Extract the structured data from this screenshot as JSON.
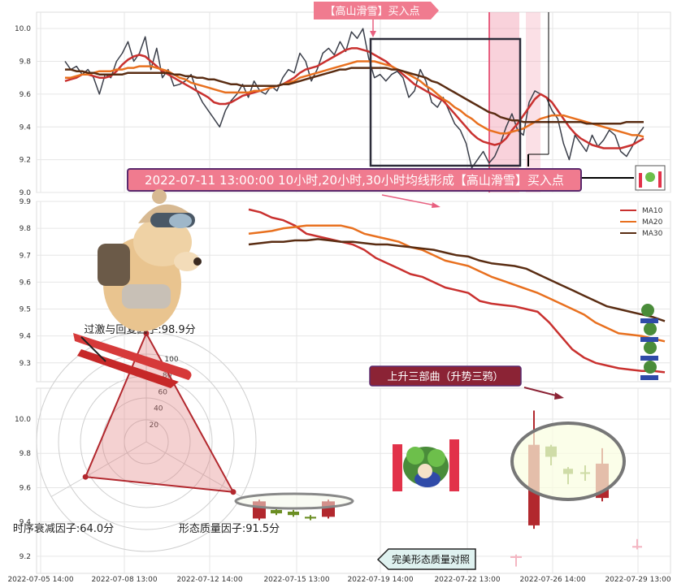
{
  "x_ticks": [
    "2022-07-05 14:00",
    "2022-07-08 13:00",
    "2022-07-12 14:00",
    "2022-07-15 13:00",
    "2022-07-19 14:00",
    "2022-07-22 13:00",
    "2022-07-26 14:00",
    "2022-07-29 13:00"
  ],
  "colors": {
    "price": "#3b3f4a",
    "ma10": "#c9312f",
    "ma20": "#e8701f",
    "ma30": "#5a2d13",
    "pink_band": "#f3a5b8",
    "candle_up": "#b2282e",
    "candle_down": "#6b8e23"
  },
  "annotations": {
    "buy_tag": "【高山滑雪】买入点",
    "banner": "2022-07-11 13:00:00 10小时,20小时,30小时均线形成【高山滑雪】买入点",
    "pattern_tag": "上升三部曲（升势三鸦）",
    "compare_tag": "完美形态质量对照"
  },
  "radar": {
    "rings": [
      "20",
      "40",
      "60",
      "80",
      "100"
    ],
    "factors": [
      {
        "label": "过激与回复因子:98.9分",
        "value": 98.9
      },
      {
        "label": "形态质量因子:91.5分",
        "value": 91.5
      },
      {
        "label": "时序衰减因子:64.0分",
        "value": 64.0
      }
    ]
  },
  "chart_data": [
    {
      "type": "line",
      "panel": "price",
      "y_ticks": [
        "10.0",
        "9.8",
        "9.6",
        "9.4",
        "9.2",
        "9.0"
      ],
      "ylim": [
        9.0,
        10.1
      ],
      "series": [
        {
          "key": "price",
          "values": [
            9.8,
            9.75,
            9.77,
            9.72,
            9.75,
            9.7,
            9.6,
            9.72,
            9.7,
            9.8,
            9.85,
            9.92,
            9.8,
            9.85,
            9.95,
            9.75,
            9.88,
            9.7,
            9.75,
            9.65,
            9.66,
            9.68,
            9.72,
            9.62,
            9.55,
            9.5,
            9.45,
            9.4,
            9.5,
            9.56,
            9.6,
            9.66,
            9.58,
            9.68,
            9.62,
            9.6,
            9.65,
            9.62,
            9.7,
            9.75,
            9.73,
            9.85,
            9.8,
            9.68,
            9.75,
            9.85,
            9.88,
            9.84,
            9.92,
            9.86,
            9.98,
            9.94,
            10.0,
            9.82,
            9.7,
            9.72,
            9.68,
            9.72,
            9.74,
            9.7,
            9.58,
            9.62,
            9.75,
            9.68,
            9.55,
            9.52,
            9.58,
            9.5,
            9.42,
            9.38,
            9.3,
            9.15,
            9.2,
            9.25,
            9.18,
            9.22,
            9.3,
            9.4,
            9.48,
            9.38,
            9.35,
            9.55,
            9.62,
            9.6,
            9.58,
            9.5,
            9.45,
            9.3,
            9.2,
            9.35,
            9.3,
            9.25,
            9.35,
            9.28,
            9.32,
            9.38,
            9.35,
            9.25,
            9.22,
            9.28,
            9.35,
            9.4
          ]
        },
        {
          "key": "ma10",
          "values": [
            9.68,
            9.69,
            9.7,
            9.72,
            9.72,
            9.71,
            9.7,
            9.7,
            9.71,
            9.74,
            9.78,
            9.81,
            9.83,
            9.84,
            9.83,
            9.8,
            9.77,
            9.74,
            9.72,
            9.7,
            9.68,
            9.66,
            9.64,
            9.62,
            9.6,
            9.58,
            9.55,
            9.54,
            9.54,
            9.55,
            9.57,
            9.59,
            9.6,
            9.61,
            9.62,
            9.63,
            9.64,
            9.65,
            9.66,
            9.68,
            9.7,
            9.73,
            9.75,
            9.76,
            9.77,
            9.79,
            9.81,
            9.83,
            9.85,
            9.87,
            9.88,
            9.88,
            9.87,
            9.86,
            9.84,
            9.82,
            9.8,
            9.77,
            9.75,
            9.72,
            9.69,
            9.66,
            9.64,
            9.62,
            9.6,
            9.58,
            9.56,
            9.52,
            9.48,
            9.44,
            9.4,
            9.36,
            9.33,
            9.31,
            9.3,
            9.29,
            9.3,
            9.33,
            9.38,
            9.42,
            9.47,
            9.52,
            9.57,
            9.6,
            9.58,
            9.55,
            9.5,
            9.45,
            9.4,
            9.36,
            9.33,
            9.31,
            9.29,
            9.28,
            9.27,
            9.27,
            9.27,
            9.27,
            9.28,
            9.29,
            9.31,
            9.33
          ]
        },
        {
          "key": "ma20",
          "values": [
            9.7,
            9.7,
            9.71,
            9.72,
            9.72,
            9.73,
            9.74,
            9.74,
            9.74,
            9.75,
            9.75,
            9.76,
            9.76,
            9.77,
            9.77,
            9.77,
            9.76,
            9.75,
            9.74,
            9.72,
            9.7,
            9.69,
            9.67,
            9.66,
            9.65,
            9.64,
            9.63,
            9.62,
            9.61,
            9.61,
            9.61,
            9.61,
            9.61,
            9.62,
            9.62,
            9.63,
            9.64,
            9.65,
            9.66,
            9.67,
            9.68,
            9.7,
            9.71,
            9.72,
            9.73,
            9.74,
            9.75,
            9.76,
            9.77,
            9.78,
            9.79,
            9.8,
            9.8,
            9.8,
            9.8,
            9.79,
            9.78,
            9.77,
            9.75,
            9.74,
            9.72,
            9.7,
            9.68,
            9.65,
            9.63,
            9.6,
            9.57,
            9.55,
            9.52,
            9.5,
            9.47,
            9.45,
            9.42,
            9.4,
            9.38,
            9.37,
            9.36,
            9.36,
            9.37,
            9.38,
            9.39,
            9.41,
            9.43,
            9.45,
            9.46,
            9.47,
            9.47,
            9.47,
            9.46,
            9.45,
            9.44,
            9.43,
            9.42,
            9.41,
            9.4,
            9.39,
            9.38,
            9.37,
            9.36,
            9.35,
            9.35,
            9.34
          ]
        },
        {
          "key": "ma30",
          "values": [
            9.75,
            9.75,
            9.74,
            9.74,
            9.73,
            9.73,
            9.72,
            9.72,
            9.72,
            9.72,
            9.72,
            9.73,
            9.73,
            9.73,
            9.73,
            9.73,
            9.73,
            9.73,
            9.73,
            9.72,
            9.72,
            9.71,
            9.71,
            9.7,
            9.7,
            9.69,
            9.69,
            9.68,
            9.67,
            9.66,
            9.66,
            9.65,
            9.65,
            9.65,
            9.65,
            9.65,
            9.65,
            9.65,
            9.66,
            9.66,
            9.67,
            9.68,
            9.69,
            9.7,
            9.71,
            9.72,
            9.73,
            9.74,
            9.75,
            9.75,
            9.76,
            9.76,
            9.76,
            9.76,
            9.76,
            9.76,
            9.76,
            9.75,
            9.75,
            9.74,
            9.73,
            9.72,
            9.71,
            9.7,
            9.68,
            9.67,
            9.65,
            9.63,
            9.61,
            9.59,
            9.57,
            9.55,
            9.53,
            9.51,
            9.49,
            9.48,
            9.46,
            9.45,
            9.44,
            9.44,
            9.43,
            9.43,
            9.43,
            9.43,
            9.43,
            9.43,
            9.43,
            9.43,
            9.43,
            9.43,
            9.43,
            9.42,
            9.42,
            9.42,
            9.42,
            9.42,
            9.42,
            9.42,
            9.43,
            9.43,
            9.43,
            9.43
          ]
        }
      ]
    },
    {
      "type": "line",
      "panel": "ma_zoom",
      "y_ticks": [
        "9.9",
        "9.8",
        "9.7",
        "9.6",
        "9.5",
        "9.4",
        "9.3"
      ],
      "ylim": [
        9.23,
        9.9
      ],
      "legend": [
        "MA10",
        "MA20",
        "MA30"
      ],
      "series": [
        {
          "key": "ma10",
          "values": [
            9.87,
            9.86,
            9.84,
            9.83,
            9.81,
            9.78,
            9.77,
            9.76,
            9.75,
            9.74,
            9.72,
            9.69,
            9.67,
            9.65,
            9.63,
            9.62,
            9.6,
            9.58,
            9.57,
            9.56,
            9.53,
            9.52,
            9.515,
            9.51,
            9.5,
            9.49,
            9.45,
            9.4,
            9.35,
            9.32,
            9.3,
            9.29,
            9.28,
            9.275,
            9.27,
            9.27,
            9.265
          ]
        },
        {
          "key": "ma20",
          "values": [
            9.78,
            9.785,
            9.79,
            9.8,
            9.805,
            9.81,
            9.81,
            9.81,
            9.81,
            9.8,
            9.78,
            9.77,
            9.76,
            9.75,
            9.73,
            9.72,
            9.7,
            9.68,
            9.67,
            9.66,
            9.64,
            9.62,
            9.605,
            9.59,
            9.575,
            9.56,
            9.54,
            9.52,
            9.5,
            9.48,
            9.45,
            9.43,
            9.41,
            9.405,
            9.4,
            9.39,
            9.38
          ]
        },
        {
          "key": "ma30",
          "values": [
            9.74,
            9.745,
            9.75,
            9.75,
            9.755,
            9.755,
            9.76,
            9.755,
            9.75,
            9.75,
            9.745,
            9.74,
            9.74,
            9.735,
            9.73,
            9.725,
            9.72,
            9.71,
            9.7,
            9.695,
            9.68,
            9.67,
            9.665,
            9.66,
            9.65,
            9.63,
            9.61,
            9.59,
            9.57,
            9.55,
            9.53,
            9.51,
            9.5,
            9.49,
            9.48,
            9.47,
            9.455
          ]
        }
      ]
    },
    {
      "type": "candlestick",
      "panel": "pattern",
      "y_ticks": [
        "10.0",
        "9.8",
        "9.6",
        "9.4",
        "9.2"
      ],
      "ylim": [
        9.1,
        10.18
      ],
      "candles": [
        {
          "group": "compare",
          "open": 9.42,
          "close": 9.52,
          "high": 9.53,
          "low": 9.41,
          "dir": "up"
        },
        {
          "group": "compare",
          "open": 9.45,
          "close": 9.47,
          "high": 9.48,
          "low": 9.44,
          "dir": "down"
        },
        {
          "group": "compare",
          "open": 9.44,
          "close": 9.46,
          "high": 9.47,
          "low": 9.43,
          "dir": "down"
        },
        {
          "group": "compare",
          "open": 9.42,
          "close": 9.43,
          "high": 9.44,
          "low": 9.41,
          "dir": "down"
        },
        {
          "group": "compare",
          "open": 9.43,
          "close": 9.52,
          "high": 9.53,
          "low": 9.42,
          "dir": "up"
        },
        {
          "group": "main",
          "open": 9.38,
          "close": 9.85,
          "high": 10.05,
          "low": 9.36,
          "dir": "up"
        },
        {
          "group": "main",
          "open": 9.84,
          "close": 9.78,
          "high": 9.85,
          "low": 9.73,
          "dir": "down"
        },
        {
          "group": "main",
          "open": 9.71,
          "close": 9.68,
          "high": 9.72,
          "low": 9.62,
          "dir": "down"
        },
        {
          "group": "main",
          "open": 9.69,
          "close": 9.68,
          "high": 9.73,
          "low": 9.64,
          "dir": "down"
        },
        {
          "group": "main",
          "open": 9.54,
          "close": 9.74,
          "high": 9.83,
          "low": 9.52,
          "dir": "up"
        },
        {
          "group": "ghost",
          "open": 9.19,
          "close": 9.2,
          "high": 9.21,
          "low": 9.14,
          "dir": "down"
        },
        {
          "group": "ghost",
          "open": 9.25,
          "close": 9.26,
          "high": 9.3,
          "low": 9.24,
          "dir": "down"
        }
      ]
    }
  ]
}
